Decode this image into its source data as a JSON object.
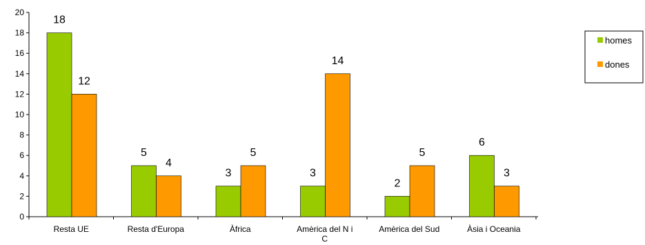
{
  "chart_data": {
    "type": "bar",
    "categories": [
      "Resta UE",
      "Resta d'Europa",
      "Àfrica",
      "Amèrica del N i C",
      "Amèrica del Sud",
      "Àsia i Oceania"
    ],
    "series": [
      {
        "name": "homes",
        "values": [
          18,
          5,
          3,
          3,
          2,
          6
        ],
        "color": "#99cc00"
      },
      {
        "name": "dones",
        "values": [
          12,
          4,
          5,
          14,
          5,
          3
        ],
        "color": "#ff9900"
      }
    ],
    "ylim": [
      0,
      20
    ],
    "yticks": [
      0,
      2,
      4,
      6,
      8,
      10,
      12,
      14,
      16,
      18,
      20
    ],
    "grid": false,
    "legend": "right",
    "data_labels": true
  }
}
